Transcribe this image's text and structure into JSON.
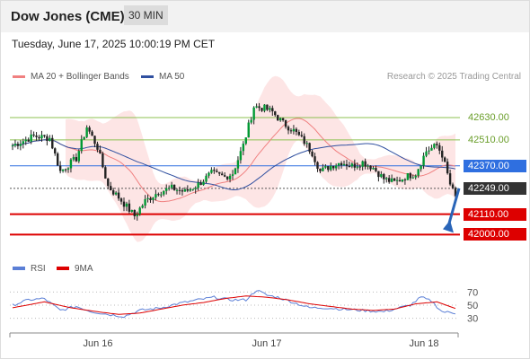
{
  "header": {
    "title": "Dow Jones (CME)",
    "timeframe": "30 MIN"
  },
  "date": "Tuesday, June 17, 2025 10:00:19 PM CET",
  "legend": {
    "ma20": "MA 20 + Bollinger Bands",
    "ma50": "MA 50",
    "credit": "Research © 2025 Trading Central"
  },
  "rsi_legend": {
    "rsi": "RSI",
    "ma9": "9MA"
  },
  "colors": {
    "ma20": "#f08080",
    "ma50": "#3050a0",
    "band": "#fde0e0",
    "resistance": "#8cc050",
    "pivot": "#2f6fe0",
    "support": "#dd0000",
    "last": "#333333",
    "candle": "#009933",
    "rsi": "#5b7fd6",
    "rsi_ma": "#dd0000"
  },
  "chart_data": {
    "type": "candlestick",
    "title": "Dow Jones (CME)",
    "ylim": [
      41900,
      42780
    ],
    "x_ticks": [
      "Jun 16",
      "Jun 17",
      "Jun 18"
    ],
    "levels": [
      {
        "value": "42630.00",
        "kind": "resistance"
      },
      {
        "value": "42510.00",
        "kind": "resistance"
      },
      {
        "value": "42370.00",
        "kind": "pivot"
      },
      {
        "value": "42249.00",
        "kind": "last"
      },
      {
        "value": "42110.00",
        "kind": "support"
      },
      {
        "value": "42000.00",
        "kind": "support"
      }
    ],
    "anchors": [
      [
        0,
        42480
      ],
      [
        8,
        42530
      ],
      [
        14,
        42520
      ],
      [
        18,
        42340
      ],
      [
        24,
        42410
      ],
      [
        28,
        42580
      ],
      [
        32,
        42470
      ],
      [
        36,
        42260
      ],
      [
        40,
        42200
      ],
      [
        46,
        42100
      ],
      [
        50,
        42180
      ],
      [
        55,
        42230
      ],
      [
        60,
        42250
      ],
      [
        65,
        42230
      ],
      [
        70,
        42270
      ],
      [
        75,
        42330
      ],
      [
        80,
        42310
      ],
      [
        83,
        42330
      ],
      [
        87,
        42480
      ],
      [
        91,
        42690
      ],
      [
        95,
        42680
      ],
      [
        98,
        42660
      ],
      [
        102,
        42600
      ],
      [
        106,
        42560
      ],
      [
        110,
        42500
      ],
      [
        113,
        42440
      ],
      [
        116,
        42340
      ],
      [
        120,
        42370
      ],
      [
        124,
        42390
      ],
      [
        128,
        42370
      ],
      [
        132,
        42390
      ],
      [
        136,
        42360
      ],
      [
        140,
        42300
      ],
      [
        144,
        42280
      ],
      [
        148,
        42310
      ],
      [
        152,
        42330
      ],
      [
        156,
        42450
      ],
      [
        160,
        42480
      ],
      [
        162,
        42430
      ],
      [
        165,
        42270
      ],
      [
        167,
        42200
      ]
    ],
    "rsi_axis": [
      70,
      50,
      30
    ],
    "rsi_anchors": [
      [
        0,
        50
      ],
      [
        6,
        58
      ],
      [
        12,
        60
      ],
      [
        18,
        42
      ],
      [
        24,
        48
      ],
      [
        30,
        40
      ],
      [
        36,
        36
      ],
      [
        42,
        33
      ],
      [
        48,
        42
      ],
      [
        56,
        46
      ],
      [
        62,
        52
      ],
      [
        70,
        58
      ],
      [
        76,
        62
      ],
      [
        82,
        58
      ],
      [
        88,
        58
      ],
      [
        92,
        73
      ],
      [
        96,
        65
      ],
      [
        100,
        62
      ],
      [
        106,
        54
      ],
      [
        112,
        46
      ],
      [
        118,
        46
      ],
      [
        124,
        44
      ],
      [
        132,
        42
      ],
      [
        140,
        40
      ],
      [
        146,
        46
      ],
      [
        150,
        50
      ],
      [
        154,
        62
      ],
      [
        158,
        56
      ],
      [
        162,
        40
      ],
      [
        167,
        38
      ]
    ],
    "rsi_ma_anchors": [
      [
        0,
        46
      ],
      [
        12,
        55
      ],
      [
        22,
        46
      ],
      [
        32,
        40
      ],
      [
        40,
        36
      ],
      [
        48,
        38
      ],
      [
        56,
        44
      ],
      [
        64,
        50
      ],
      [
        72,
        54
      ],
      [
        80,
        60
      ],
      [
        88,
        64
      ],
      [
        96,
        62
      ],
      [
        104,
        58
      ],
      [
        112,
        52
      ],
      [
        120,
        48
      ],
      [
        128,
        44
      ],
      [
        136,
        42
      ],
      [
        144,
        44
      ],
      [
        152,
        52
      ],
      [
        160,
        55
      ],
      [
        167,
        45
      ]
    ]
  }
}
